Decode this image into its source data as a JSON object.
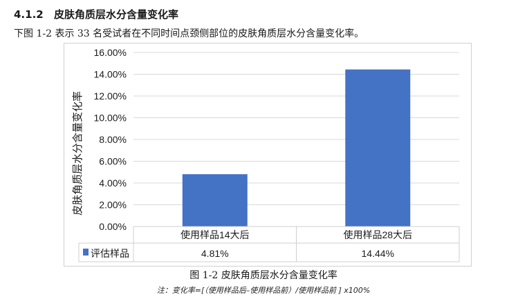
{
  "section": {
    "number": "4.1.2",
    "title": "皮肤角质层水分含量变化率"
  },
  "intro_text": "下图 1-2 表示 33 名受试者在不同时间点颈侧部位的皮肤角质层水分含量变化率。",
  "caption": "图 1-2 皮肤角质层水分含量变化率",
  "note": "注：变化率=[（使用样品后–使用样品前）/使用样品前 ] x100%",
  "colors": {
    "bar": "#4472c4",
    "grid": "#d9d9d9",
    "axis_text": "#1a1a1a"
  },
  "chart_data": {
    "type": "bar",
    "categories": [
      "使用样品14大后",
      "使用样品28大后"
    ],
    "series": [
      {
        "name": "评估样品",
        "values": [
          4.81,
          14.44
        ],
        "labels": [
          "4.81%",
          "14.44%"
        ]
      }
    ],
    "ylabel": "皮肤角质层水分含量变化率",
    "ylim": [
      0,
      16
    ],
    "yticks": [
      "0.00%",
      "2.00%",
      "4.00%",
      "6.00%",
      "8.00%",
      "10.00%",
      "12.00%",
      "14.00%",
      "16.00%"
    ],
    "grid": true,
    "legend": "data-table-row"
  }
}
